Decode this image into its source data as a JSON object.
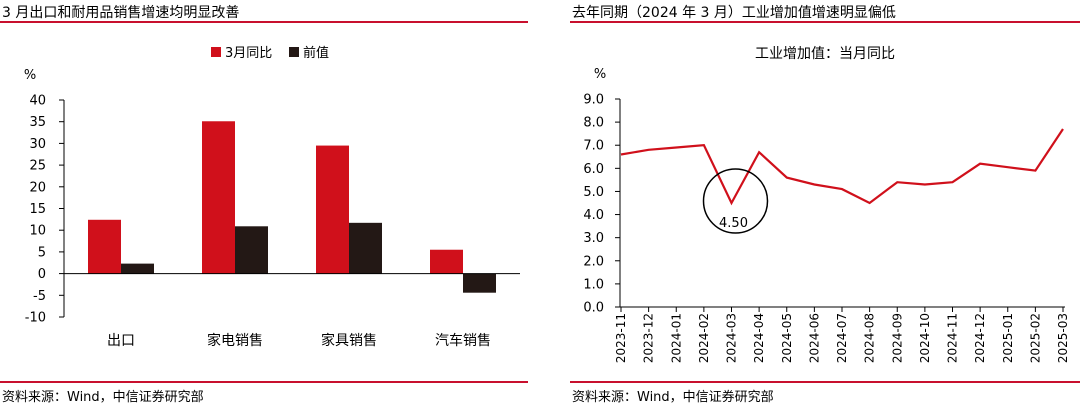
{
  "left": {
    "header_title": "3 月出口和耐用品销售增速均明显改善",
    "source": "资料来源：Wind，中信证券研究部",
    "chart_data": {
      "type": "bar",
      "ylabel": "%",
      "ylim": [
        -10,
        40
      ],
      "yticks": [
        40,
        35,
        30,
        25,
        20,
        15,
        10,
        5,
        0,
        -5,
        -10
      ],
      "legend_position": "top-center",
      "grid": false,
      "categories": [
        "出口",
        "家电销售",
        "家具销售",
        "汽车销售"
      ],
      "series": [
        {
          "name": "3月同比",
          "color": "#d0101b",
          "values": [
            12.4,
            35.1,
            29.5,
            5.5
          ]
        },
        {
          "name": "前值",
          "color": "#231815",
          "values": [
            2.3,
            10.9,
            11.7,
            -4.4
          ]
        }
      ]
    }
  },
  "right": {
    "header_title": "去年同期（2024 年 3 月）工业增加值增速明显偏低",
    "source": "资料来源：Wind，中信证券研究部",
    "chart_data": {
      "type": "line",
      "title": "工业增加值：当月同比",
      "ylabel": "%",
      "ylim": [
        0,
        9
      ],
      "yticks": [
        "9.0",
        "8.0",
        "7.0",
        "6.0",
        "5.0",
        "4.0",
        "3.0",
        "2.0",
        "1.0",
        "0.0"
      ],
      "grid": false,
      "x": [
        "2023-11",
        "2023-12",
        "2024-01",
        "2024-02",
        "2024-03",
        "2024-04",
        "2024-05",
        "2024-06",
        "2024-07",
        "2024-08",
        "2024-09",
        "2024-10",
        "2024-11",
        "2024-12",
        "2025-01",
        "2025-02",
        "2025-03"
      ],
      "xtick_labels": [
        "2023-11",
        "2023-12",
        "2024-01",
        "2024-02",
        "2024-03",
        "2024-04",
        "2024-05",
        "2024-06",
        "2024-07",
        "2024-08",
        "2024-09",
        "2024-10",
        "2024-11",
        "2024-12",
        "2025-01",
        "2025-02",
        "2025-03"
      ],
      "series": [
        {
          "name": "工业增加值：当月同比",
          "color": "#d0101b",
          "values": [
            6.6,
            6.8,
            6.9,
            7.0,
            4.5,
            6.7,
            5.6,
            5.3,
            5.1,
            4.5,
            5.4,
            5.3,
            5.4,
            6.2,
            6.05,
            5.9,
            7.7
          ]
        }
      ],
      "annotation": {
        "x": "2024-03",
        "text": "4.50"
      }
    }
  }
}
